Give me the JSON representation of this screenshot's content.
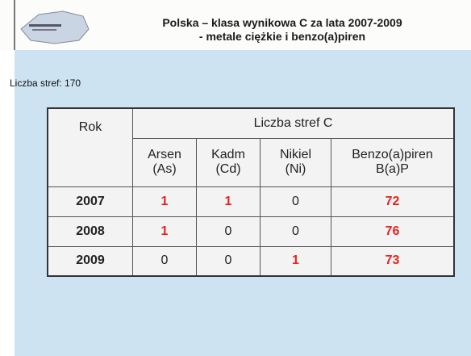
{
  "header": {
    "title_lines": [
      "Polska – klasa wynikowa C za lata 2007-2009",
      "- metale ciężkie i benzo(a)piren"
    ]
  },
  "zone_count": "Liczba stref: 170",
  "table": {
    "row_header": "Rok",
    "group_header": "Liczba stref C",
    "columns": [
      [
        "Arsen",
        "(As)"
      ],
      [
        "Kadm",
        "(Cd)"
      ],
      [
        "Nikiel",
        "(Ni)"
      ],
      [
        "Benzo(a)piren",
        "B(a)P"
      ]
    ],
    "rows": [
      [
        2007,
        1,
        1,
        0,
        72
      ],
      [
        2008,
        1,
        0,
        0,
        76
      ],
      [
        2009,
        0,
        0,
        1,
        73
      ]
    ]
  }
}
